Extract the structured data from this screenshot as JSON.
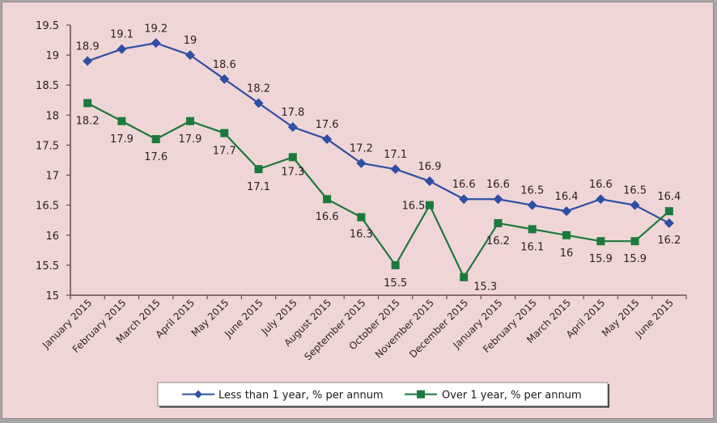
{
  "chart_data": {
    "type": "line",
    "title": "",
    "xlabel": "",
    "ylabel": "",
    "ylim": [
      15,
      19.5
    ],
    "yticks": [
      "15",
      "15.5",
      "16",
      "16.5",
      "17",
      "17.5",
      "18",
      "18.5",
      "19",
      "19.5"
    ],
    "grid": false,
    "legend_position": "bottom",
    "categories": [
      "January 2015",
      "February 2015",
      "March 2015",
      "April 2015",
      "May 2015",
      "June 2015",
      "July 2015",
      "August 2015",
      "September 2015",
      "October 2015",
      "November 2015",
      "December 2015",
      "January 2015",
      "February 2015",
      "March 2015",
      "April 2015",
      "May 2015",
      "June 2015"
    ],
    "series": [
      {
        "name": "Less than 1 year, % per annum",
        "color": "#2e4fa3",
        "marker": "diamond",
        "values": [
          18.9,
          19.1,
          19.2,
          19,
          18.6,
          18.2,
          17.8,
          17.6,
          17.2,
          17.1,
          16.9,
          16.6,
          16.6,
          16.5,
          16.4,
          16.6,
          16.5,
          16.2
        ],
        "labels": [
          "18.9",
          "19.1",
          "19.2",
          "19",
          "18.6",
          "18.2",
          "17.8",
          "17.6",
          "17.2",
          "17.1",
          "16.9",
          "16.6",
          "16.6",
          "16.5",
          "16.4",
          "16.6",
          "16.5",
          "16.2"
        ]
      },
      {
        "name": "Over 1 year, % per annum",
        "color": "#1a7a3c",
        "marker": "square",
        "values": [
          18.2,
          17.9,
          17.6,
          17.9,
          17.7,
          17.1,
          17.3,
          16.6,
          16.3,
          15.5,
          16.5,
          15.3,
          16.2,
          16.1,
          16,
          15.9,
          15.9,
          16.4
        ],
        "labels": [
          "18.2",
          "17.9",
          "17.6",
          "17.9",
          "17.7",
          "17.1",
          "17.3",
          "16.6",
          "16.3",
          "15.5",
          "16.5",
          "15.3",
          "16.2",
          "16.1",
          "16",
          "15.9",
          "15.9",
          "16.4"
        ]
      }
    ]
  }
}
